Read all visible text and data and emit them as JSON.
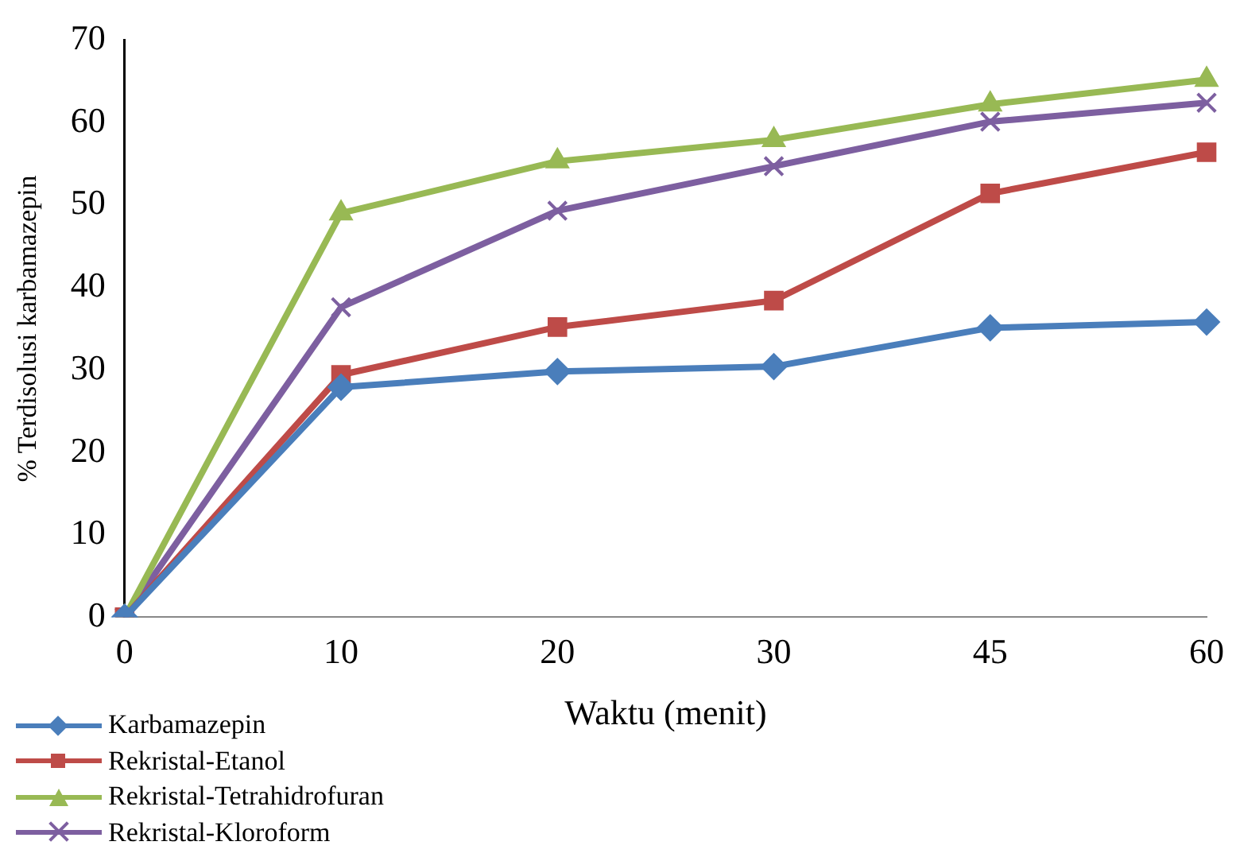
{
  "chart_data": {
    "type": "line",
    "xlabel": "Waktu (menit)",
    "ylabel": "% Terdisolusi karbamazepin",
    "categories": [
      "0",
      "10",
      "20",
      "30",
      "45",
      "60"
    ],
    "ylim": [
      0,
      70
    ],
    "yticks": [
      0,
      10,
      20,
      30,
      40,
      50,
      60,
      70
    ],
    "grid": false,
    "legend": "bottom left",
    "line_style": "solid",
    "series": [
      {
        "name": "Karbamazepin",
        "color": "#4a7ebb",
        "marker": "diamond",
        "values": [
          0,
          27.9,
          29.8,
          30.4,
          35.1,
          35.8
        ]
      },
      {
        "name": "Rekristal-Etanol",
        "color": "#be4b48",
        "marker": "square",
        "values": [
          0,
          29.4,
          35.2,
          38.4,
          51.4,
          56.4
        ]
      },
      {
        "name": "Rekristal-Tetrahidrofuran",
        "color": "#98b954",
        "marker": "triangle",
        "values": [
          0,
          49.0,
          55.3,
          57.9,
          62.2,
          65.2
        ]
      },
      {
        "name": "Rekristal-Kloroform",
        "color": "#7d5fa0",
        "marker": "cross",
        "values": [
          0,
          37.6,
          49.3,
          54.7,
          60.1,
          62.4
        ]
      }
    ]
  }
}
